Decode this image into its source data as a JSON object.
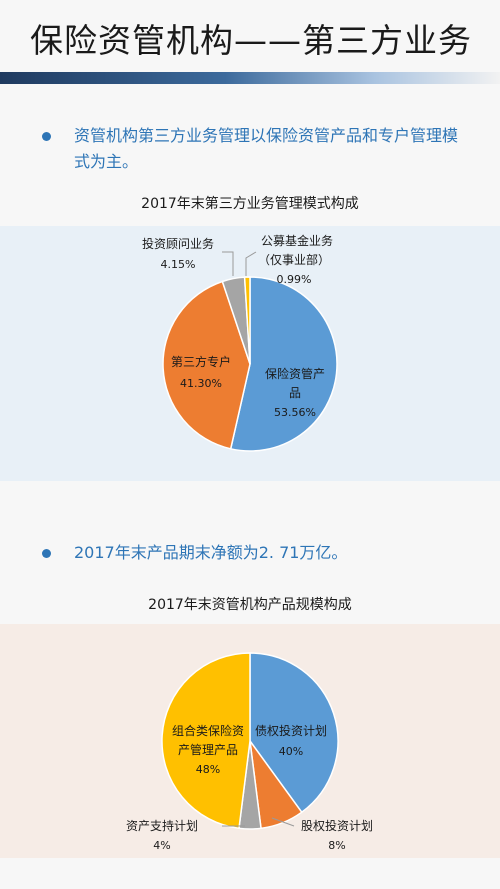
{
  "page": {
    "title": "保险资管机构——第三方业务",
    "bullet1": "资管机构第三方业务管理以保险资管产品和专户管理模式为主。",
    "bullet2": "2017年末产品期末净额为2. 71万亿。"
  },
  "colors": {
    "blue": "#5b9bd5",
    "orange": "#ed7d31",
    "gray": "#a5a5a5",
    "gold": "#ffc000",
    "accent": "#2e75b6"
  },
  "chart_data": [
    {
      "type": "pie",
      "title": "2017年末第三方业务管理模式构成",
      "slices": [
        {
          "label": "保险资管产品",
          "value": 53.56,
          "value_label": "53.56%",
          "color": "#5b9bd5"
        },
        {
          "label": "第三方专户",
          "value": 41.3,
          "value_label": "41.30%",
          "color": "#ed7d31"
        },
        {
          "label": "投资顾问业务",
          "value": 4.15,
          "value_label": "4.15%",
          "color": "#a5a5a5"
        },
        {
          "label": "公募基金业务（仅事业部）",
          "value": 0.99,
          "value_label": "0.99%",
          "color": "#ffc000"
        }
      ],
      "labels": {
        "s0_line1": "保险资管产",
        "s0_line2": "品",
        "s0_value": "53.56%",
        "s1_line1": "第三方专户",
        "s1_value": "41.30%",
        "s2_line1": "投资顾问业务",
        "s2_value": "4.15%",
        "s3_line1": "公募基金业务",
        "s3_line2": "（仅事业部）",
        "s3_value": "0.99%"
      }
    },
    {
      "type": "pie",
      "title": "2017年末资管机构产品规模构成",
      "slices": [
        {
          "label": "债权投资计划",
          "value": 40,
          "value_label": "40%",
          "color": "#5b9bd5"
        },
        {
          "label": "股权投资计划",
          "value": 8,
          "value_label": "8%",
          "color": "#ed7d31"
        },
        {
          "label": "资产支持计划",
          "value": 4,
          "value_label": "4%",
          "color": "#a5a5a5"
        },
        {
          "label": "组合类保险资产管理产品",
          "value": 48,
          "value_label": "48%",
          "color": "#ffc000"
        }
      ],
      "labels": {
        "s0_line1": "债权投资计划",
        "s0_value": "40%",
        "s1_line1": "股权投资计划",
        "s1_value": "8%",
        "s2_line1": "资产支持计划",
        "s2_value": "4%",
        "s3_line1": "组合类保险资",
        "s3_line2": "产管理产品",
        "s3_value": "48%"
      }
    }
  ]
}
